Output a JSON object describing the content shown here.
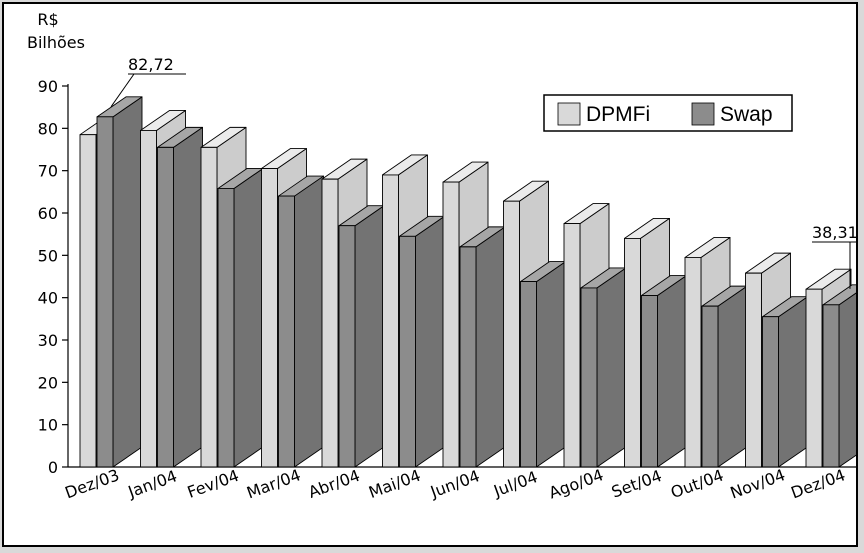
{
  "chart_data": {
    "type": "bar",
    "unit_label": [
      "R$",
      "Bilhões"
    ],
    "categories": [
      "Dez/03",
      "Jan/04",
      "Fev/04",
      "Mar/04",
      "Abr/04",
      "Mai/04",
      "Jun/04",
      "Jul/04",
      "Ago/04",
      "Set/04",
      "Out/04",
      "Nov/04",
      "Dez/04"
    ],
    "series": [
      {
        "name": "DPMFi",
        "values": [
          78.5,
          79.5,
          75.5,
          70.5,
          68.0,
          69.0,
          67.3,
          62.8,
          57.5,
          54.0,
          49.5,
          45.8,
          42.0
        ],
        "color": "#d9d9d9"
      },
      {
        "name": "Swap",
        "values": [
          82.72,
          75.5,
          65.8,
          64.0,
          57.0,
          54.5,
          52.0,
          43.8,
          42.3,
          40.5,
          38.0,
          35.5,
          38.31
        ],
        "color": "#8c8c8c"
      }
    ],
    "ylim": [
      0,
      90
    ],
    "yticks": [
      0,
      10,
      20,
      30,
      40,
      50,
      60,
      70,
      80,
      90
    ],
    "annotations": [
      {
        "text": "82,72",
        "category": "Dez/03",
        "series": "Swap"
      },
      {
        "text": "38,31",
        "category": "Dez/04",
        "series": "Swap"
      }
    ],
    "legend": {
      "placement": "top-right",
      "items": [
        "DPMFi",
        "Swap"
      ]
    },
    "grid": false
  }
}
